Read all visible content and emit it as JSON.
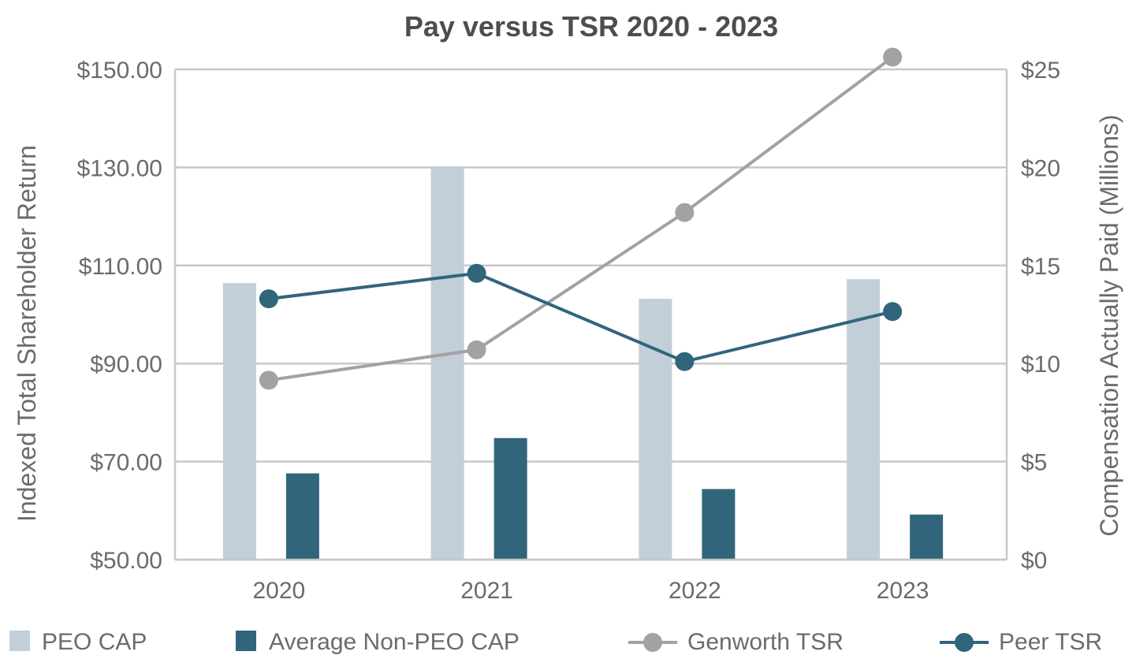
{
  "chart_data": {
    "type": "bar",
    "title": "Pay versus TSR 2020 - 2023",
    "categories": [
      "2020",
      "2021",
      "2022",
      "2023"
    ],
    "y_left": {
      "label": "Indexed Total Shareholder Return",
      "min": 50,
      "max": 150,
      "ticks": [
        50,
        70,
        90,
        110,
        130,
        150
      ],
      "tick_labels": [
        "$50.00",
        "$70.00",
        "$90.00",
        "$110.00",
        "$130.00",
        "$150.00"
      ]
    },
    "y_right": {
      "label": "Compensation Actually Paid (Millions)",
      "min": 0,
      "max": 25,
      "ticks": [
        0,
        5,
        10,
        15,
        20,
        25
      ],
      "tick_labels": [
        "$0",
        "$5",
        "$10",
        "$15",
        "$20",
        "$25"
      ]
    },
    "grid": true,
    "legend_position": "bottom",
    "bar_series": [
      {
        "name": "PEO CAP",
        "axis": "right",
        "color": "#c2ced8",
        "values": [
          14.1,
          20.0,
          13.3,
          14.3
        ]
      },
      {
        "name": "Average Non-PEO CAP",
        "axis": "right",
        "color": "#31657c",
        "values": [
          4.4,
          6.2,
          3.6,
          2.3
        ]
      }
    ],
    "line_series": [
      {
        "name": "Genworth TSR",
        "axis": "left",
        "color": "#a2a2a4",
        "values": [
          86.6,
          92.8,
          120.8,
          152.5
        ]
      },
      {
        "name": "Peer TSR",
        "axis": "left",
        "color": "#31657c",
        "values": [
          103.2,
          108.4,
          90.4,
          100.6
        ]
      }
    ]
  }
}
